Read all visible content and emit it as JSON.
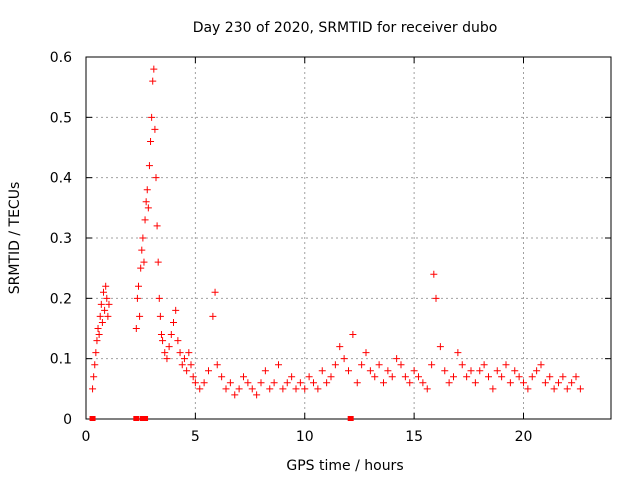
{
  "chart_data": {
    "type": "scatter",
    "title": "Day 230 of 2020, SRMTID for receiver dubo",
    "xlabel": "GPS time / hours",
    "ylabel": "SRMTID / TECUs",
    "xlim": [
      0,
      24
    ],
    "ylim": [
      0,
      0.6
    ],
    "x_ticks": [
      0,
      5,
      10,
      15,
      20
    ],
    "x_tick_labels": [
      "0",
      "5",
      "10",
      "15",
      "20"
    ],
    "y_ticks": [
      0,
      0.1,
      0.2,
      0.3,
      0.4,
      0.5,
      0.6
    ],
    "y_tick_labels": [
      "0",
      "0.1",
      "0.2",
      "0.3",
      "0.4",
      "0.5",
      "0.6"
    ],
    "grid": true,
    "marker": "plus",
    "color": "#ff0000",
    "series": [
      {
        "name": "SRMTID",
        "x": [
          0.3,
          0.35,
          0.4,
          0.45,
          0.5,
          0.55,
          0.6,
          0.65,
          0.7,
          0.75,
          0.8,
          0.85,
          0.9,
          0.95,
          1.0,
          1.05,
          2.3,
          2.35,
          2.4,
          2.45,
          2.5,
          2.55,
          2.6,
          2.65,
          2.7,
          2.75,
          2.8,
          2.85,
          2.9,
          2.95,
          3.0,
          3.05,
          3.1,
          3.15,
          3.2,
          3.25,
          3.3,
          3.35,
          3.4,
          3.45,
          3.5,
          3.6,
          3.7,
          3.8,
          3.9,
          4.0,
          4.1,
          4.2,
          4.3,
          4.4,
          4.5,
          4.6,
          4.7,
          4.8,
          4.9,
          5.0,
          5.2,
          5.4,
          5.6,
          5.8,
          5.9,
          6.0,
          6.2,
          6.4,
          6.6,
          6.8,
          7.0,
          7.2,
          7.4,
          7.6,
          7.8,
          8.0,
          8.2,
          8.4,
          8.6,
          8.8,
          9.0,
          9.2,
          9.4,
          9.6,
          9.8,
          10.0,
          10.2,
          10.4,
          10.6,
          10.8,
          11.0,
          11.2,
          11.4,
          11.6,
          11.8,
          12.0,
          12.2,
          12.4,
          12.6,
          12.8,
          13.0,
          13.2,
          13.4,
          13.6,
          13.8,
          14.0,
          14.2,
          14.4,
          14.6,
          14.8,
          15.0,
          15.2,
          15.4,
          15.6,
          15.8,
          15.9,
          16.0,
          16.2,
          16.4,
          16.6,
          16.8,
          17.0,
          17.2,
          17.4,
          17.6,
          17.8,
          18.0,
          18.2,
          18.4,
          18.6,
          18.8,
          19.0,
          19.2,
          19.4,
          19.6,
          19.8,
          20.0,
          20.2,
          20.4,
          20.6,
          20.8,
          21.0,
          21.2,
          21.4,
          21.6,
          21.8,
          22.0,
          22.2,
          22.4,
          22.6
        ],
        "y": [
          0.05,
          0.07,
          0.09,
          0.11,
          0.13,
          0.15,
          0.14,
          0.17,
          0.19,
          0.16,
          0.21,
          0.18,
          0.22,
          0.2,
          0.17,
          0.19,
          0.15,
          0.2,
          0.22,
          0.17,
          0.25,
          0.28,
          0.3,
          0.26,
          0.33,
          0.36,
          0.38,
          0.35,
          0.42,
          0.46,
          0.5,
          0.56,
          0.58,
          0.48,
          0.4,
          0.32,
          0.26,
          0.2,
          0.17,
          0.14,
          0.13,
          0.11,
          0.1,
          0.12,
          0.14,
          0.16,
          0.18,
          0.13,
          0.11,
          0.09,
          0.1,
          0.08,
          0.11,
          0.09,
          0.07,
          0.06,
          0.05,
          0.06,
          0.08,
          0.17,
          0.21,
          0.09,
          0.07,
          0.05,
          0.06,
          0.04,
          0.05,
          0.07,
          0.06,
          0.05,
          0.04,
          0.06,
          0.08,
          0.05,
          0.06,
          0.09,
          0.05,
          0.06,
          0.07,
          0.05,
          0.06,
          0.05,
          0.07,
          0.06,
          0.05,
          0.08,
          0.06,
          0.07,
          0.09,
          0.12,
          0.1,
          0.08,
          0.14,
          0.06,
          0.09,
          0.11,
          0.08,
          0.07,
          0.09,
          0.06,
          0.08,
          0.07,
          0.1,
          0.09,
          0.07,
          0.06,
          0.08,
          0.07,
          0.06,
          0.05,
          0.09,
          0.24,
          0.2,
          0.12,
          0.08,
          0.06,
          0.07,
          0.11,
          0.09,
          0.07,
          0.08,
          0.06,
          0.08,
          0.09,
          0.07,
          0.05,
          0.08,
          0.07,
          0.09,
          0.06,
          0.08,
          0.07,
          0.06,
          0.05,
          0.07,
          0.08,
          0.09,
          0.06,
          0.07,
          0.05,
          0.06,
          0.07,
          0.05,
          0.06,
          0.07,
          0.05
        ]
      }
    ],
    "zero_markers_x": [
      0.3,
      2.3,
      2.6,
      2.7,
      12.1
    ]
  }
}
